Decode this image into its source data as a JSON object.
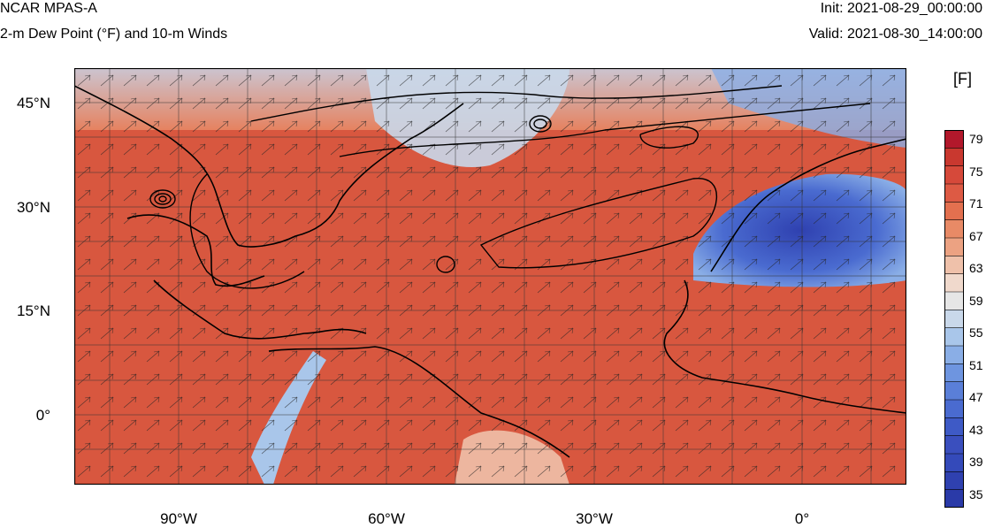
{
  "header": {
    "title": "NCAR MPAS-A",
    "subtitle": "2-m Dew Point (°F) and 10-m Winds",
    "init": "Init: 2021-08-29_00:00:00",
    "valid": "Valid: 2021-08-30_14:00:00"
  },
  "map": {
    "lat_labels": [
      "45°N",
      "30°N",
      "15°N",
      "0°"
    ],
    "lon_labels": [
      "90°W",
      "60°W",
      "30°W",
      "0°"
    ]
  },
  "colorbar": {
    "unit": "[F]",
    "labels": [
      "79",
      "75",
      "71",
      "67",
      "63",
      "59",
      "55",
      "51",
      "47",
      "43",
      "39",
      "35"
    ],
    "colors": [
      "#b2182b",
      "#c9382f",
      "#d6493a",
      "#dd5a44",
      "#e3704f",
      "#e88a66",
      "#eca282",
      "#efc1aa",
      "#f0d9cc",
      "#e6e6e6",
      "#c9d8ea",
      "#a9c6ea",
      "#8aaee6",
      "#6e95e0",
      "#5a7fd8",
      "#4a6bd0",
      "#3e5ac6",
      "#3a4fbe",
      "#344aba",
      "#2f41b0",
      "#2a3aa8"
    ]
  },
  "colors": {
    "ocean_moist": "#d8573f",
    "land_dry": "#3a4fbe",
    "mid": "#e9a58c",
    "coast": "#000000"
  }
}
